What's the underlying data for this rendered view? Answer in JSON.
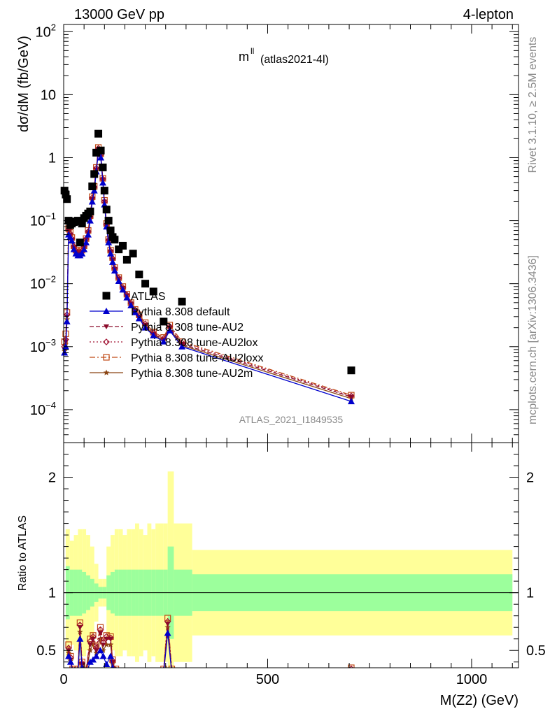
{
  "header": {
    "left": "13000 GeV pp",
    "right": "4-lepton"
  },
  "side_labels": {
    "rivet": "Rivet 3.1.10, ≥ 2.5M events",
    "mcplots": "mcplots.cern.ch [arXiv:1306.3436]"
  },
  "chart_data": [
    {
      "type": "scatter",
      "title": "m",
      "title_sup": "ll",
      "title_sub": "(atlas2021-4l)",
      "ylabel": "dσ/dM (fb/GeV)",
      "y_scale": "log",
      "ylim": [
        3e-05,
        130
      ],
      "xlim": [
        0,
        1115
      ],
      "watermark": "ATLAS_2021_I1849535",
      "yticks": [
        {
          "v": 0.0001,
          "base": "10",
          "exp": "−4"
        },
        {
          "v": 0.001,
          "base": "10",
          "exp": "−3"
        },
        {
          "v": 0.01,
          "base": "10",
          "exp": "−2"
        },
        {
          "v": 0.1,
          "base": "10",
          "exp": "−1"
        },
        {
          "v": 1,
          "base": "1",
          "exp": ""
        },
        {
          "v": 10,
          "base": "10",
          "exp": ""
        },
        {
          "v": 100,
          "base": "10",
          "exp": "2"
        }
      ],
      "legend": [
        "ATLAS",
        "Pythia 8.308 default",
        "Pythia 8.308 tune-AU2",
        "Pythia 8.308 tune-AU2lox",
        "Pythia 8.308 tune-AU2loxx",
        "Pythia 8.308 tune-AU2m"
      ],
      "legend_placement": "lower-left",
      "colors": {
        "data": "#000000",
        "default": "#0000cc",
        "AU2": "#8b0a2a",
        "AU2lox": "#a01030",
        "AU2loxx": "#c04a16",
        "AU2m": "#8b4513"
      },
      "series": [
        {
          "name": "ATLAS",
          "x": [
            2,
            5,
            8,
            12,
            16,
            20,
            25,
            30,
            35,
            40,
            45,
            50,
            55,
            60,
            65,
            70,
            75,
            80,
            85,
            91,
            96,
            100,
            105,
            110,
            115,
            120,
            125,
            135,
            145,
            155,
            170,
            185,
            200,
            220,
            245,
            290,
            705
          ],
          "y": [
            0.3,
            0.26,
            0.22,
            0.1,
            0.085,
            0.09,
            0.095,
            0.097,
            0.1,
            0.045,
            0.09,
            0.11,
            0.12,
            0.13,
            0.14,
            0.35,
            0.55,
            1.2,
            2.4,
            1.3,
            0.7,
            0.3,
            0.15,
            0.1,
            0.07,
            0.055,
            0.05,
            0.035,
            0.04,
            0.024,
            0.03,
            0.014,
            0.01,
            0.0075,
            0.0025,
            0.0052,
            0.00042
          ]
        },
        {
          "name": "Pythia 8.308 default",
          "x": [
            2,
            5,
            8,
            12,
            16,
            20,
            25,
            30,
            35,
            40,
            45,
            50,
            55,
            60,
            65,
            70,
            75,
            80,
            85,
            91,
            96,
            100,
            105,
            110,
            115,
            120,
            125,
            135,
            145,
            155,
            165,
            175,
            185,
            200,
            220,
            245,
            260,
            290,
            705
          ],
          "y": [
            0.0008,
            0.001,
            0.0025,
            0.06,
            0.055,
            0.048,
            0.035,
            0.03,
            0.028,
            0.028,
            0.03,
            0.035,
            0.045,
            0.06,
            0.1,
            0.2,
            0.3,
            0.6,
            1.2,
            1.0,
            0.4,
            0.18,
            0.08,
            0.045,
            0.03,
            0.022,
            0.016,
            0.011,
            0.008,
            0.006,
            0.0045,
            0.0035,
            0.0028,
            0.002,
            0.0015,
            0.0012,
            0.0018,
            0.001,
            0.000135
          ]
        },
        {
          "name": "Pythia 8.308 tune-AU2",
          "x": [
            2,
            5,
            8,
            12,
            16,
            20,
            25,
            30,
            35,
            40,
            45,
            50,
            55,
            60,
            65,
            70,
            75,
            80,
            85,
            91,
            96,
            100,
            105,
            110,
            115,
            120,
            125,
            135,
            145,
            155,
            165,
            175,
            185,
            200,
            220,
            245,
            260,
            290,
            705
          ],
          "y": [
            0.0009,
            0.0012,
            0.003,
            0.07,
            0.06,
            0.05,
            0.038,
            0.032,
            0.03,
            0.03,
            0.032,
            0.038,
            0.05,
            0.065,
            0.11,
            0.22,
            0.33,
            0.65,
            1.35,
            1.1,
            0.45,
            0.2,
            0.085,
            0.048,
            0.032,
            0.024,
            0.017,
            0.012,
            0.0085,
            0.0065,
            0.0048,
            0.0037,
            0.003,
            0.0022,
            0.0016,
            0.0013,
            0.002,
            0.0011,
            0.00016
          ]
        },
        {
          "name": "Pythia 8.308 tune-AU2lox",
          "x": [
            2,
            5,
            8,
            12,
            16,
            20,
            25,
            30,
            35,
            40,
            45,
            50,
            55,
            60,
            65,
            70,
            75,
            80,
            85,
            91,
            96,
            100,
            105,
            110,
            115,
            120,
            125,
            135,
            145,
            155,
            165,
            175,
            185,
            200,
            220,
            245,
            260,
            290,
            705
          ],
          "y": [
            0.001,
            0.0013,
            0.0032,
            0.072,
            0.062,
            0.052,
            0.039,
            0.033,
            0.031,
            0.031,
            0.033,
            0.039,
            0.051,
            0.067,
            0.115,
            0.23,
            0.34,
            0.68,
            1.4,
            1.12,
            0.46,
            0.2,
            0.087,
            0.049,
            0.033,
            0.025,
            0.0175,
            0.0122,
            0.0087,
            0.0066,
            0.0049,
            0.0038,
            0.0031,
            0.0023,
            0.00165,
            0.00135,
            0.0021,
            0.00115,
            0.000165
          ]
        },
        {
          "name": "Pythia 8.308 tune-AU2loxx",
          "x": [
            2,
            5,
            8,
            12,
            16,
            20,
            25,
            30,
            35,
            40,
            45,
            50,
            55,
            60,
            65,
            70,
            75,
            80,
            85,
            91,
            96,
            100,
            105,
            110,
            115,
            120,
            125,
            135,
            145,
            155,
            165,
            175,
            185,
            200,
            220,
            245,
            260,
            290,
            705
          ],
          "y": [
            0.0012,
            0.0016,
            0.0035,
            0.075,
            0.065,
            0.054,
            0.04,
            0.034,
            0.032,
            0.032,
            0.034,
            0.04,
            0.052,
            0.07,
            0.12,
            0.24,
            0.35,
            0.7,
            1.45,
            1.15,
            0.47,
            0.21,
            0.09,
            0.05,
            0.034,
            0.026,
            0.018,
            0.0125,
            0.009,
            0.0068,
            0.005,
            0.0039,
            0.0032,
            0.0024,
            0.0017,
            0.0014,
            0.0022,
            0.0012,
            0.00017
          ]
        },
        {
          "name": "Pythia 8.308 tune-AU2m",
          "x": [
            2,
            5,
            8,
            12,
            16,
            20,
            25,
            30,
            35,
            40,
            45,
            50,
            55,
            60,
            65,
            70,
            75,
            80,
            85,
            91,
            96,
            100,
            105,
            110,
            115,
            120,
            125,
            135,
            145,
            155,
            165,
            175,
            185,
            200,
            220,
            245,
            260,
            290,
            705
          ],
          "y": [
            0.00085,
            0.0011,
            0.0027,
            0.065,
            0.057,
            0.049,
            0.036,
            0.031,
            0.029,
            0.029,
            0.031,
            0.036,
            0.047,
            0.062,
            0.105,
            0.21,
            0.31,
            0.62,
            1.3,
            1.05,
            0.43,
            0.19,
            0.082,
            0.047,
            0.031,
            0.023,
            0.0165,
            0.0115,
            0.0082,
            0.0062,
            0.0046,
            0.0036,
            0.0029,
            0.0021,
            0.00155,
            0.00125,
            0.0019,
            0.00105,
            0.00015
          ]
        }
      ]
    },
    {
      "type": "line",
      "ylabel": "Ratio to ATLAS",
      "xlabel": "M(Z2) (GeV)",
      "ylim": [
        0.35,
        2.3
      ],
      "xlim": [
        0,
        1115
      ],
      "xticks": [
        0,
        500,
        1000
      ],
      "yticks": [
        0.5,
        1,
        2
      ],
      "bands": {
        "inner_color": "#9cff9c",
        "outer_color": "#ffff99",
        "edges": [
          5,
          15,
          25,
          35,
          45,
          55,
          65,
          75,
          85,
          95,
          105,
          115,
          125,
          135,
          145,
          155,
          165,
          175,
          185,
          195,
          205,
          215,
          225,
          235,
          245,
          255,
          270,
          315,
          1100
        ],
        "inner": [
          0.23,
          0.2,
          0.2,
          0.2,
          0.18,
          0.15,
          0.12,
          0.08,
          0.05,
          0.05,
          0.15,
          0.18,
          0.2,
          0.2,
          0.2,
          0.2,
          0.2,
          0.2,
          0.2,
          0.2,
          0.2,
          0.2,
          0.2,
          0.2,
          0.2,
          0.4,
          0.2,
          0.16
        ],
        "outer": [
          0.55,
          0.45,
          0.5,
          0.55,
          0.55,
          0.5,
          0.4,
          0.25,
          0.12,
          0.12,
          0.4,
          0.5,
          0.55,
          0.55,
          0.5,
          0.55,
          0.55,
          0.6,
          0.55,
          0.5,
          0.6,
          0.55,
          0.6,
          0.6,
          0.6,
          1.05,
          0.6,
          0.37
        ]
      },
      "series": [
        {
          "name": "Pythia 8.308 default",
          "x": [
            12,
            17,
            22,
            27,
            35,
            40,
            45,
            55,
            65,
            72,
            80,
            90,
            97,
            105,
            115,
            120,
            128,
            245,
            255,
            265,
            705
          ],
          "y": [
            0.45,
            0.4,
            0.3,
            0.3,
            0.3,
            0.6,
            0.35,
            0.3,
            0.4,
            0.42,
            0.45,
            0.5,
            0.45,
            0.38,
            0.45,
            0.35,
            0.3,
            0.3,
            0.65,
            0.3,
            0.3
          ]
        },
        {
          "name": "Pythia 8.308 tune-AU2",
          "x": [
            12,
            17,
            22,
            27,
            35,
            40,
            45,
            55,
            65,
            72,
            80,
            90,
            97,
            105,
            115,
            120,
            128,
            245,
            255,
            265,
            705
          ],
          "y": [
            0.5,
            0.42,
            0.32,
            0.32,
            0.32,
            0.7,
            0.38,
            0.32,
            0.55,
            0.6,
            0.5,
            0.65,
            0.55,
            0.6,
            0.6,
            0.4,
            0.32,
            0.32,
            0.73,
            0.32,
            0.33
          ]
        },
        {
          "name": "Pythia 8.308 tune-AU2lox",
          "x": [
            12,
            17,
            22,
            27,
            35,
            40,
            45,
            55,
            65,
            72,
            80,
            90,
            97,
            105,
            115,
            120,
            128,
            245,
            255,
            265,
            705
          ],
          "y": [
            0.52,
            0.44,
            0.33,
            0.33,
            0.33,
            0.72,
            0.39,
            0.33,
            0.58,
            0.62,
            0.52,
            0.68,
            0.57,
            0.62,
            0.61,
            0.41,
            0.33,
            0.33,
            0.75,
            0.33,
            0.34
          ]
        },
        {
          "name": "Pythia 8.308 tune-AU2loxx",
          "x": [
            12,
            17,
            22,
            27,
            35,
            40,
            45,
            55,
            65,
            72,
            80,
            90,
            97,
            105,
            115,
            120,
            128,
            245,
            255,
            265,
            705
          ],
          "y": [
            0.55,
            0.45,
            0.34,
            0.34,
            0.34,
            0.74,
            0.4,
            0.34,
            0.6,
            0.63,
            0.54,
            0.7,
            0.58,
            0.63,
            0.62,
            0.42,
            0.34,
            0.34,
            0.78,
            0.34,
            0.35
          ]
        },
        {
          "name": "Pythia 8.308 tune-AU2m",
          "x": [
            12,
            17,
            22,
            27,
            35,
            40,
            45,
            55,
            65,
            72,
            80,
            90,
            97,
            105,
            115,
            120,
            128,
            245,
            255,
            265,
            705
          ],
          "y": [
            0.48,
            0.41,
            0.31,
            0.31,
            0.31,
            0.66,
            0.36,
            0.31,
            0.5,
            0.55,
            0.48,
            0.6,
            0.5,
            0.55,
            0.55,
            0.38,
            0.31,
            0.31,
            0.7,
            0.31,
            0.32
          ]
        }
      ]
    }
  ]
}
